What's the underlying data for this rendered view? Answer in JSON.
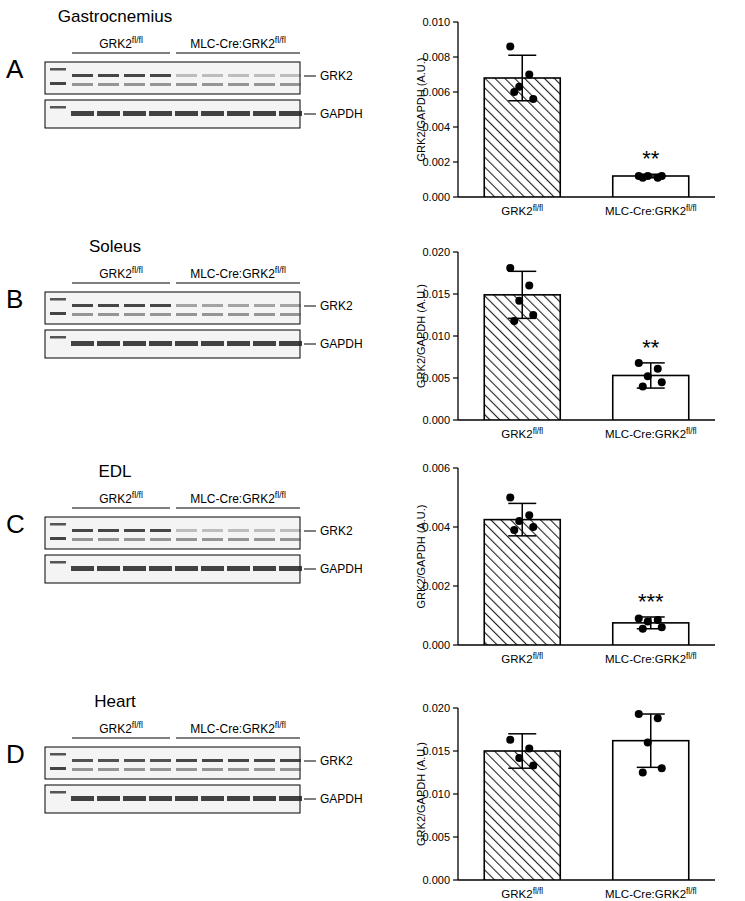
{
  "chart_data": [
    {
      "type": "bar",
      "title": "Gastrocnemius",
      "categories": [
        "GRK2fl/fl",
        "MLC-Cre:GRK2fl/fl"
      ],
      "values": [
        0.0068,
        0.0012
      ],
      "errors": [
        0.0013,
        0.0001
      ],
      "points": [
        [
          0.0086,
          0.007,
          0.0063,
          0.0056,
          0.006
        ],
        [
          0.0012,
          0.0011,
          0.0012,
          0.0012,
          0.0011
        ]
      ],
      "y_label": "GRK2/GAPDH (A.U.)",
      "ylim": [
        0,
        0.01
      ],
      "yticks": [
        {
          "value": 0,
          "label": "0.000"
        },
        {
          "value": 0.002,
          "label": "0.002"
        },
        {
          "value": 0.004,
          "label": "0.004"
        },
        {
          "value": 0.006,
          "label": "0.006"
        },
        {
          "value": 0.008,
          "label": "0.008"
        },
        {
          "value": 0.01,
          "label": "0.010"
        }
      ],
      "annotations": {
        "panel": "A",
        "significance": [
          null,
          "**"
        ],
        "blot_groups": [
          "GRK2fl/fl",
          "MLC-Cre:GRK2fl/fl"
        ],
        "blot_bands": [
          "GRK2",
          "GAPDH"
        ]
      }
    },
    {
      "type": "bar",
      "title": "Soleus",
      "categories": [
        "GRK2fl/fl",
        "MLC-Cre:GRK2fl/fl"
      ],
      "values": [
        0.0149,
        0.0053
      ],
      "errors": [
        0.0028,
        0.0015
      ],
      "points": [
        [
          0.0181,
          0.016,
          0.0142,
          0.0125,
          0.0118
        ],
        [
          0.0068,
          0.0061,
          0.0052,
          0.0045,
          0.004
        ]
      ],
      "y_label": "GRK2/GAPDH (A.U.)",
      "ylim": [
        0,
        0.02
      ],
      "yticks": [
        {
          "value": 0,
          "label": "0.000"
        },
        {
          "value": 0.005,
          "label": "0.005"
        },
        {
          "value": 0.01,
          "label": "0.010"
        },
        {
          "value": 0.015,
          "label": "0.015"
        },
        {
          "value": 0.02,
          "label": "0.020"
        }
      ],
      "annotations": {
        "panel": "B",
        "significance": [
          null,
          "**"
        ],
        "blot_groups": [
          "GRK2fl/fl",
          "MLC-Cre:GRK2fl/fl"
        ],
        "blot_bands": [
          "GRK2",
          "GAPDH"
        ]
      }
    },
    {
      "type": "bar",
      "title": "EDL",
      "categories": [
        "GRK2fl/fl",
        "MLC-Cre:GRK2fl/fl"
      ],
      "values": [
        0.00425,
        0.00075
      ],
      "errors": [
        0.00055,
        0.0002
      ],
      "points": [
        [
          0.005,
          0.0044,
          0.0042,
          0.004,
          0.0039
        ],
        [
          0.0009,
          0.00085,
          0.0008,
          0.0006,
          0.00055
        ]
      ],
      "y_label": "GRK2/GAPDH (A.U.)",
      "ylim": [
        0,
        0.006
      ],
      "yticks": [
        {
          "value": 0,
          "label": "0.000"
        },
        {
          "value": 0.002,
          "label": "0.002"
        },
        {
          "value": 0.004,
          "label": "0.004"
        },
        {
          "value": 0.006,
          "label": "0.006"
        }
      ],
      "annotations": {
        "panel": "C",
        "significance": [
          null,
          "***"
        ],
        "blot_groups": [
          "GRK2fl/fl",
          "MLC-Cre:GRK2fl/fl"
        ],
        "blot_bands": [
          "GRK2",
          "GAPDH"
        ]
      }
    },
    {
      "type": "bar",
      "title": "Heart",
      "categories": [
        "GRK2fl/fl",
        "MLC-Cre:GRK2fl/fl"
      ],
      "values": [
        0.015,
        0.0162
      ],
      "errors": [
        0.002,
        0.0031
      ],
      "points": [
        [
          0.0163,
          0.0153,
          0.0142,
          0.0133
        ],
        [
          0.0193,
          0.0188,
          0.016,
          0.013,
          0.0125
        ]
      ],
      "y_label": "GRK2/GAPDH (A.U.)",
      "ylim": [
        0,
        0.02
      ],
      "yticks": [
        {
          "value": 0,
          "label": "0.000"
        },
        {
          "value": 0.005,
          "label": "0.005"
        },
        {
          "value": 0.01,
          "label": "0.010"
        },
        {
          "value": 0.015,
          "label": "0.015"
        },
        {
          "value": 0.02,
          "label": "0.020"
        }
      ],
      "annotations": {
        "panel": "D",
        "significance": [
          null,
          null
        ],
        "blot_groups": [
          "GRK2fl/fl",
          "MLC-Cre:GRK2fl/fl"
        ],
        "blot_bands": [
          "GRK2",
          "GAPDH"
        ]
      }
    }
  ]
}
